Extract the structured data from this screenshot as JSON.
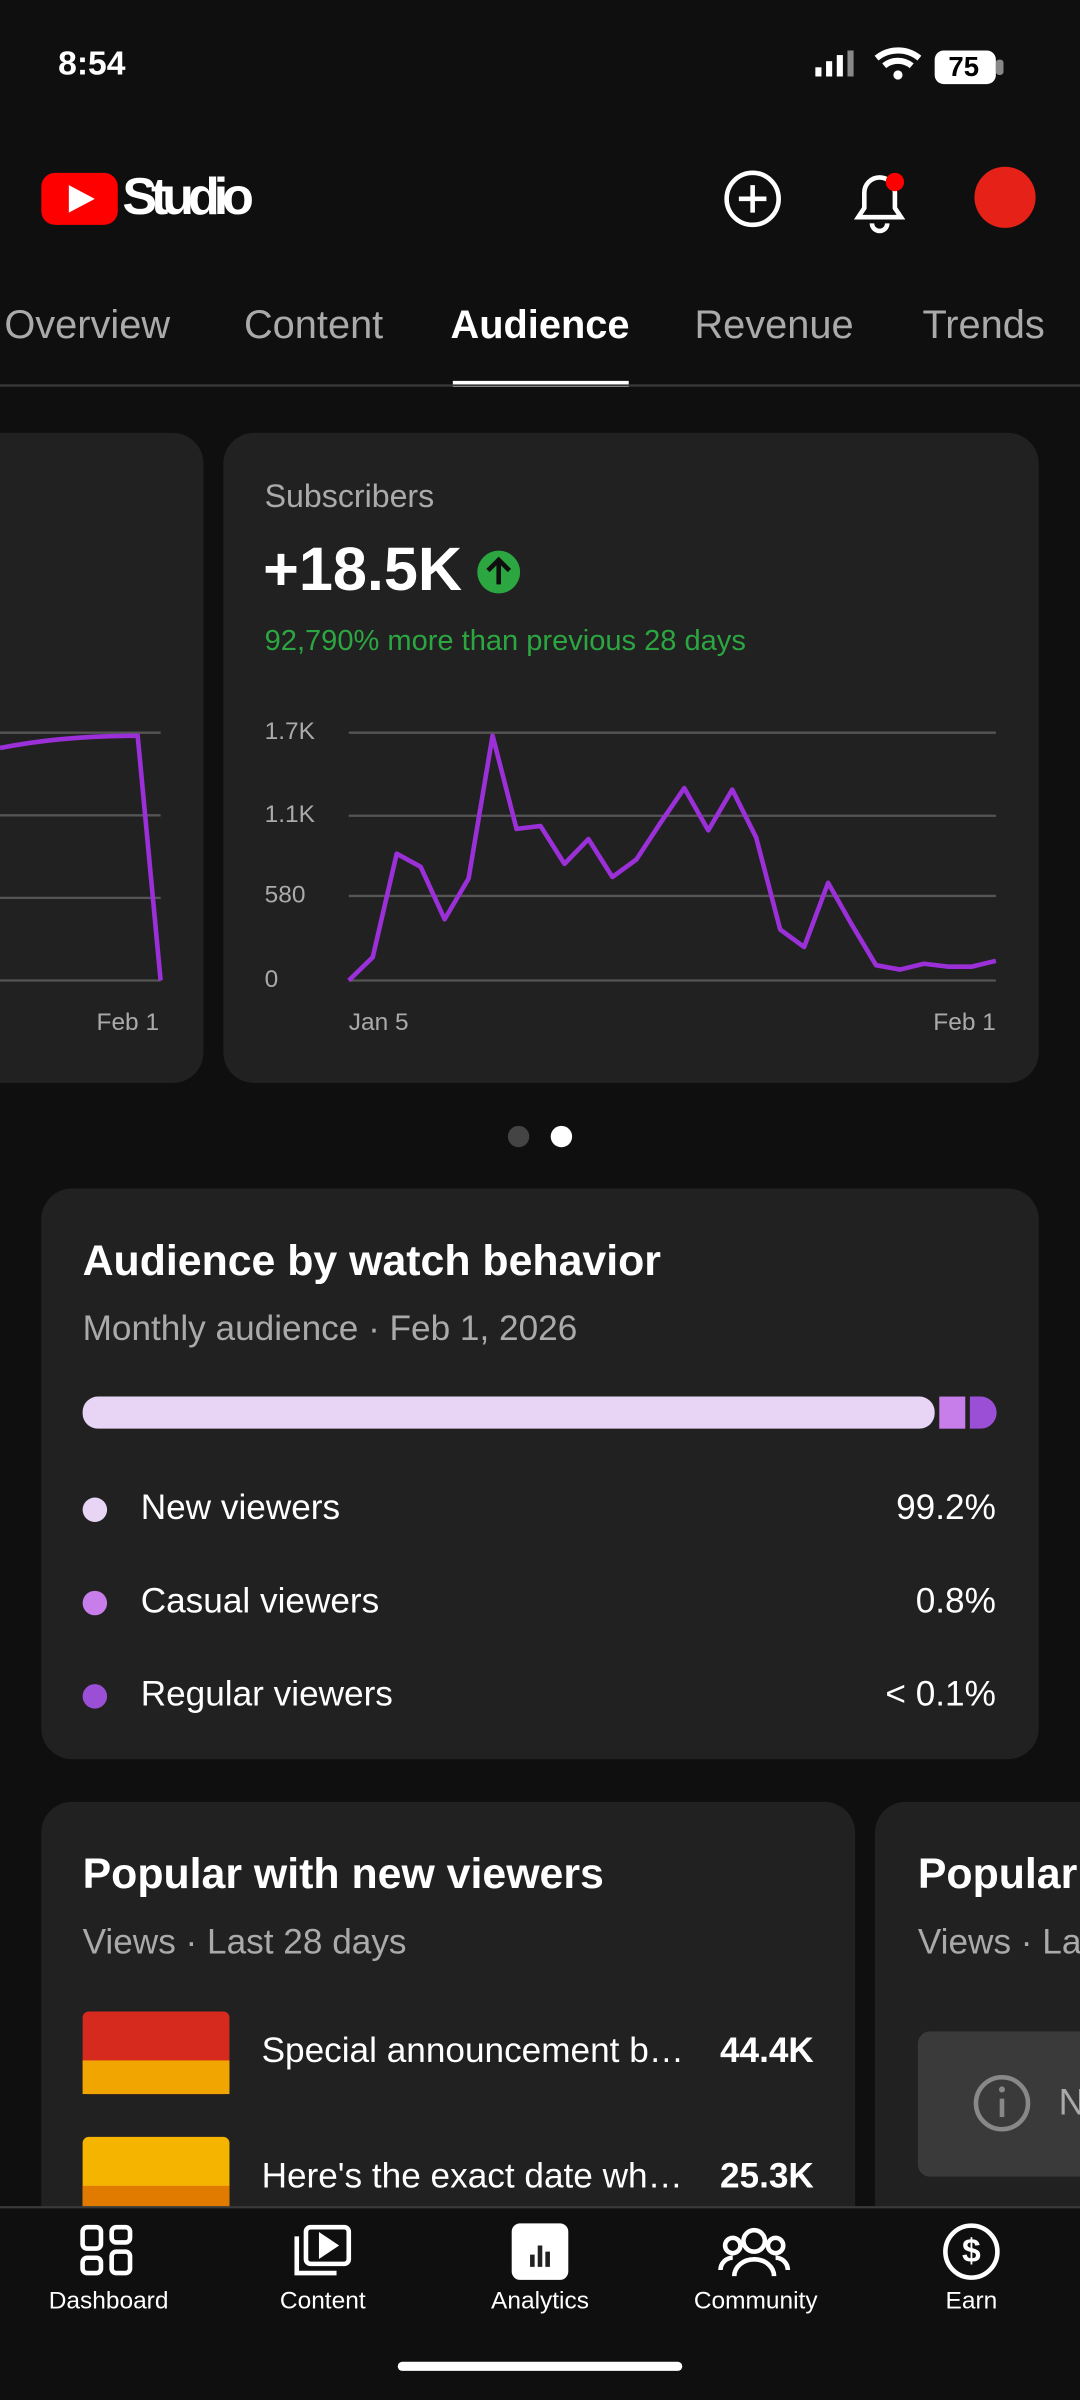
{
  "status_bar": {
    "time": "8:54",
    "battery": "75"
  },
  "header": {
    "title": "Studio"
  },
  "tabs": [
    "Overview",
    "Content",
    "Audience",
    "Revenue",
    "Trends"
  ],
  "left_card": {
    "x_label": "Feb 1"
  },
  "subscribers_card": {
    "label": "Subscribers",
    "value": "+18.5K",
    "comparison": "92,790% more than previous 28 days",
    "chart": {
      "type": "line",
      "x_labels": [
        "Jan 5",
        "Feb 1"
      ],
      "color": "#9b30d9",
      "ylim": [
        0,
        1700
      ],
      "yticks": [
        0,
        580,
        {
          "value": 1130,
          "label": "1.1K"
        },
        {
          "value": 1700,
          "label": "1.7K"
        }
      ],
      "grid": true,
      "values": [
        0,
        160,
        870,
        780,
        420,
        700,
        1680,
        1040,
        1060,
        800,
        970,
        710,
        830,
        1080,
        1320,
        1030,
        1310,
        980,
        350,
        230,
        670,
        380,
        105,
        75,
        115,
        95,
        95,
        135
      ]
    }
  },
  "watch_behavior": {
    "title": "Audience by watch behavior",
    "subtitle": "Monthly audience · Feb 1, 2026",
    "rows": [
      {
        "name": "New viewers",
        "share": "99.2%",
        "color": "#e8d5f5"
      },
      {
        "name": "Casual viewers",
        "share": "0.8%",
        "color": "#c77dea"
      },
      {
        "name": "Regular viewers",
        "share": "< 0.1%",
        "color": "#9b4fd6"
      }
    ]
  },
  "popular_new": {
    "title": "Popular with new viewers",
    "subtitle": "Views · Last 28 days",
    "videos": [
      {
        "title": "Special announcement b…",
        "views": "44.4K"
      },
      {
        "title": "Here's the exact date wh…",
        "views": "25.3K"
      }
    ]
  },
  "popular_next": {
    "title": "Popular",
    "subtitle": "Views · La",
    "note": "N"
  },
  "nav": [
    "Dashboard",
    "Content",
    "Analytics",
    "Community",
    "Earn"
  ]
}
